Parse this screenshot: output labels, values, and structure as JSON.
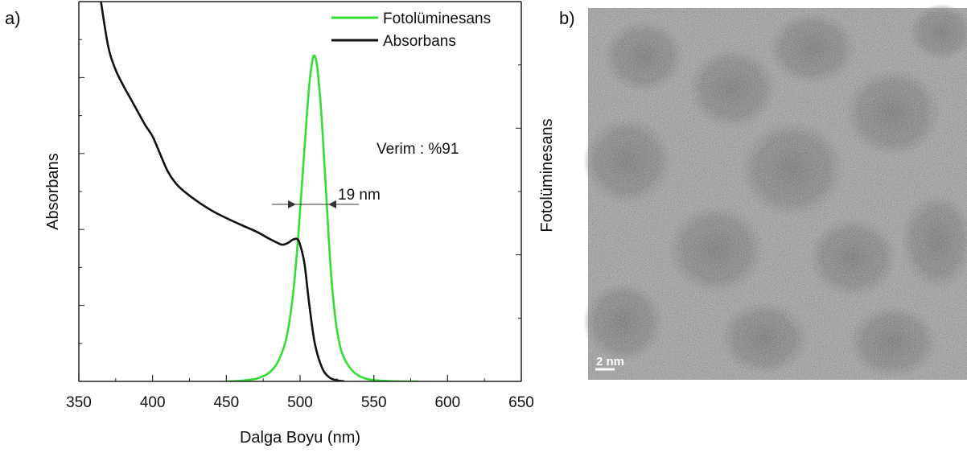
{
  "panels": {
    "a": "a)",
    "b": "b)"
  },
  "chart_data": {
    "type": "line",
    "title": "",
    "xlabel": "Dalga Boyu (nm)",
    "ylabel_left": "Absorbans",
    "ylabel_right": "Fotolüminesans",
    "xlim": [
      350,
      650
    ],
    "xticks": [
      350,
      400,
      450,
      500,
      550,
      600,
      650
    ],
    "ylim": [
      0,
      1
    ],
    "legend_position": "top-right",
    "grid": false,
    "series": [
      {
        "name": "Fotolüminesans",
        "color": "#33dd33",
        "axis": "right",
        "x": [
          450,
          460,
          470,
          475,
          480,
          485,
          490,
          493,
          496,
          499,
          502,
          505,
          507,
          509,
          511,
          513,
          515,
          518,
          521,
          524,
          527,
          530,
          535,
          540,
          545,
          550,
          560,
          570,
          580
        ],
        "y": [
          0.0,
          0.002,
          0.008,
          0.016,
          0.03,
          0.06,
          0.12,
          0.19,
          0.3,
          0.46,
          0.65,
          0.84,
          0.94,
          0.995,
          0.98,
          0.9,
          0.78,
          0.55,
          0.33,
          0.19,
          0.11,
          0.07,
          0.035,
          0.017,
          0.008,
          0.004,
          0.001,
          0.0,
          0.0
        ]
      },
      {
        "name": "Absorbans",
        "color": "#111111",
        "axis": "left",
        "x": [
          365,
          370,
          375,
          380,
          385,
          390,
          395,
          400,
          405,
          410,
          415,
          420,
          430,
          440,
          450,
          460,
          470,
          478,
          484,
          488,
          492,
          495,
          498,
          500,
          503,
          506,
          510,
          515,
          520,
          525,
          530
        ],
        "y": [
          1.0,
          0.88,
          0.82,
          0.78,
          0.745,
          0.71,
          0.675,
          0.645,
          0.6,
          0.555,
          0.525,
          0.505,
          0.475,
          0.45,
          0.43,
          0.412,
          0.395,
          0.378,
          0.366,
          0.36,
          0.365,
          0.373,
          0.375,
          0.36,
          0.31,
          0.21,
          0.1,
          0.035,
          0.01,
          0.003,
          0.0
        ]
      }
    ],
    "annotations": {
      "yield": "Verim : %91",
      "fwhm": "19 nm"
    }
  },
  "micrograph": {
    "scale_bar": "2 nm"
  }
}
